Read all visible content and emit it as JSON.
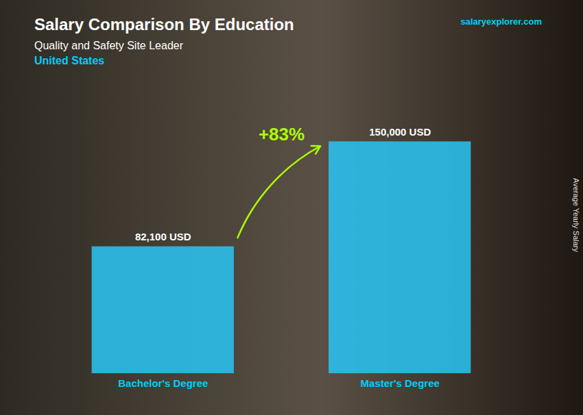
{
  "chart_data": {
    "type": "bar",
    "title": "Salary Comparison By Education",
    "subtitle": "Quality and Safety Site Leader",
    "ylabel": "Average Yearly Salary",
    "annotations": [
      "United States",
      "salaryexplorer.com",
      "+83%"
    ],
    "categories": [
      "Bachelor's Degree",
      "Master's Degree"
    ],
    "values": [
      82100,
      150000
    ],
    "value_labels": [
      "82,100 USD",
      "150,000 USD"
    ],
    "data_labels": true,
    "color": "#29C5F6",
    "ylim": [
      0,
      175000
    ],
    "tick_labels": "x",
    "grid": false
  }
}
